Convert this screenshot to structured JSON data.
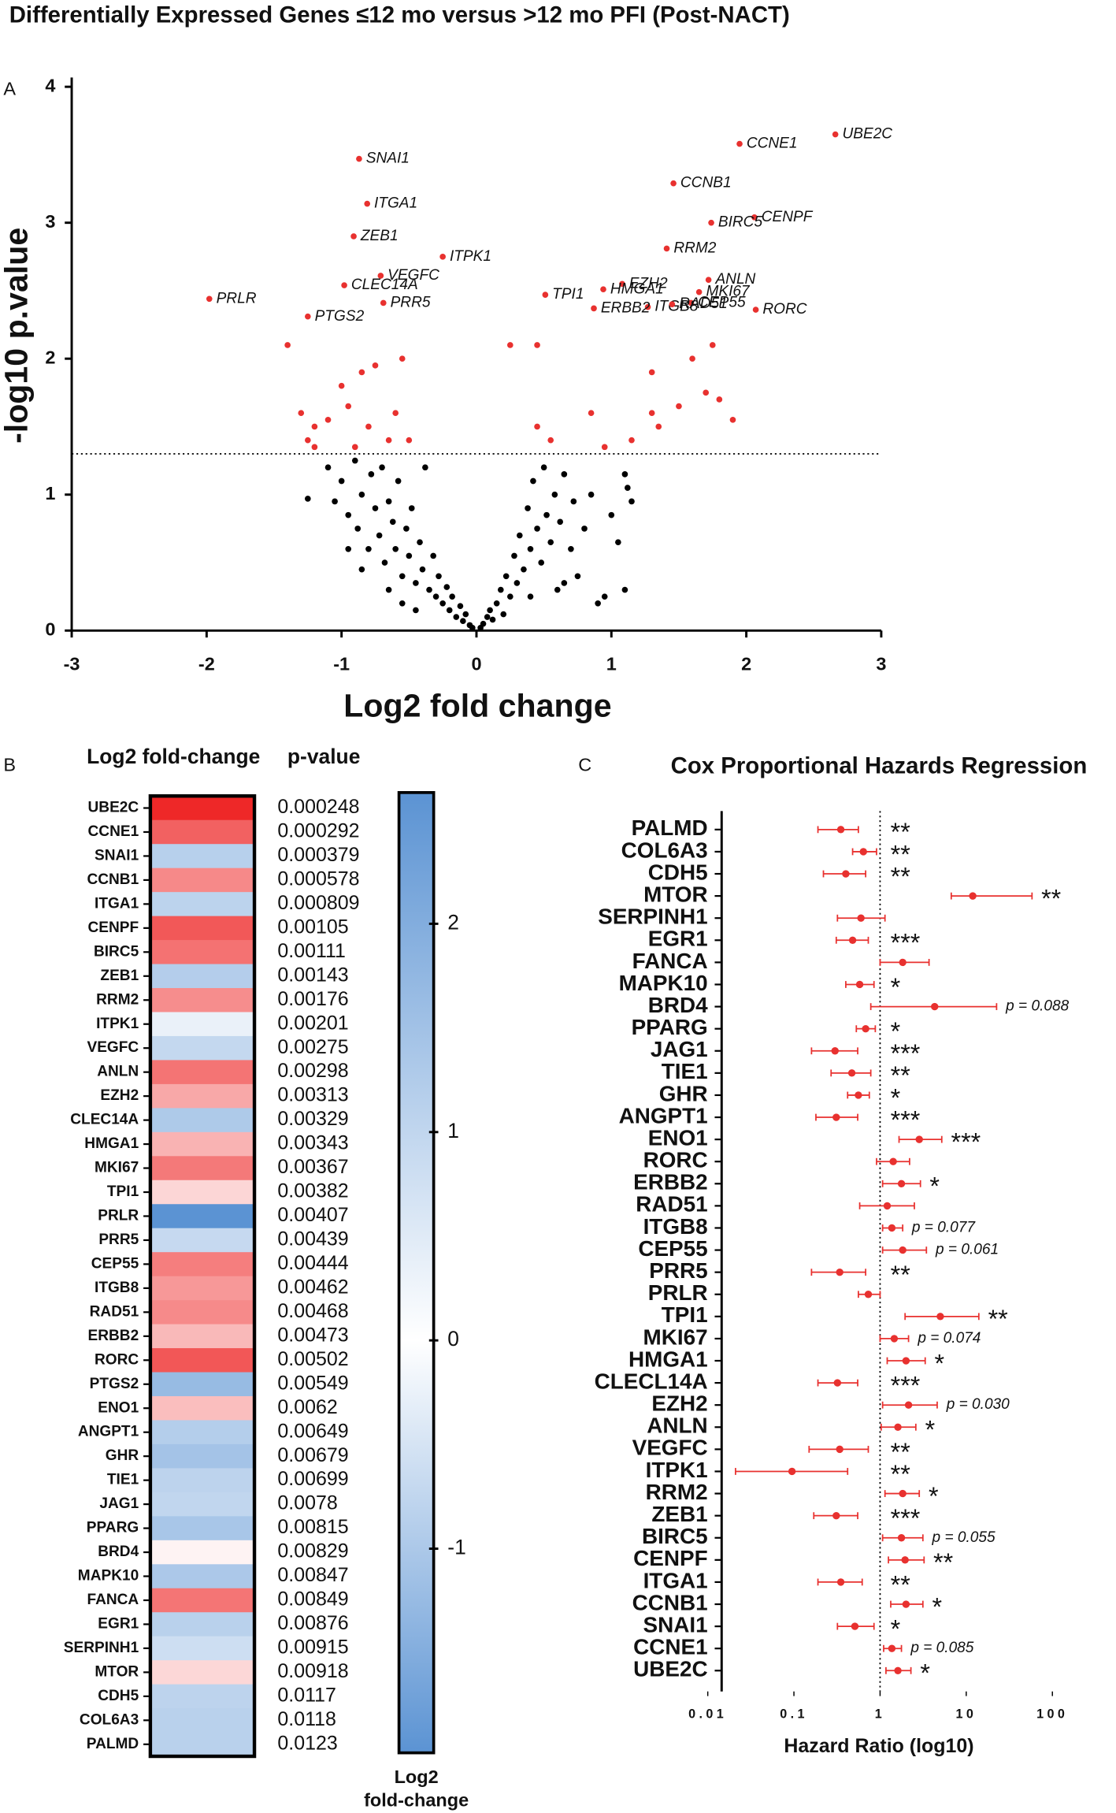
{
  "chart_data": [
    {
      "type": "scatter",
      "panel": "A",
      "title": "Differentially Expressed Genes ≤12 mo versus >12 mo PFI (Post-NACT)",
      "x_label": "Log2 fold change",
      "y_label": "-log10 p.value",
      "xlim": [
        -3,
        3
      ],
      "xticks": [
        -3,
        -2,
        -1,
        0,
        1,
        2,
        3
      ],
      "ylim": [
        0,
        4
      ],
      "yticks": [
        0,
        1,
        2,
        3,
        4
      ],
      "threshold": 1.3,
      "series": [
        {
          "color": "#e8312f",
          "labels": [
            "UBE2C",
            "CCNE1",
            "SNAI1",
            "CCNB1",
            "ITGA1",
            "CENPF",
            "BIRC5",
            "ZEB1",
            "RRM2",
            "ITPK1",
            "VEGFC",
            "ANLN",
            "EZH2",
            "CLEC14A",
            "HMGA1",
            "MKI67",
            "TPI1",
            "PRLR",
            "PRR5",
            "CEP55",
            "ITGB8",
            "RAD51",
            "ERBB2",
            "RORC",
            "PTGS2"
          ],
          "x": [
            2.66,
            1.95,
            -0.87,
            1.46,
            -0.81,
            2.06,
            1.74,
            -0.91,
            1.41,
            -0.25,
            -0.71,
            1.72,
            1.08,
            -0.98,
            0.94,
            1.65,
            0.51,
            -1.98,
            -0.69,
            1.59,
            1.27,
            1.45,
            0.87,
            2.07,
            -1.25
          ],
          "y": [
            3.65,
            3.58,
            3.47,
            3.29,
            3.14,
            3.04,
            3.0,
            2.9,
            2.81,
            2.75,
            2.61,
            2.58,
            2.55,
            2.54,
            2.51,
            2.49,
            2.47,
            2.44,
            2.41,
            2.41,
            2.38,
            2.4,
            2.37,
            2.36,
            2.31
          ]
        },
        {
          "color": "#e8312f",
          "x": [
            -1.4,
            -1.3,
            -1.2,
            -1.25,
            -1.1,
            -0.95,
            -0.85,
            -0.75,
            -0.8,
            -0.6,
            -0.55,
            -0.5,
            -0.65,
            -1.0,
            -0.9,
            -1.2,
            0.25,
            0.45,
            0.45,
            0.55,
            0.85,
            0.95,
            1.15,
            1.3,
            1.3,
            1.35,
            1.6,
            1.7,
            1.8,
            1.9,
            1.5,
            1.75
          ],
          "y": [
            2.1,
            1.6,
            1.5,
            1.4,
            1.55,
            1.65,
            1.9,
            1.95,
            1.5,
            1.6,
            2.0,
            1.4,
            1.4,
            1.8,
            1.35,
            1.35,
            2.1,
            2.1,
            1.5,
            1.4,
            1.6,
            1.35,
            1.4,
            1.6,
            1.9,
            1.5,
            2.0,
            1.75,
            1.7,
            1.55,
            1.65,
            2.1
          ]
        },
        {
          "color": "#000000",
          "x": [
            -1.25,
            -1.1,
            -1.05,
            -1.0,
            -0.95,
            -0.9,
            -0.88,
            -0.85,
            -0.8,
            -0.78,
            -0.75,
            -0.72,
            -0.7,
            -0.68,
            -0.65,
            -0.62,
            -0.6,
            -0.58,
            -0.55,
            -0.52,
            -0.5,
            -0.48,
            -0.45,
            -0.42,
            -0.4,
            -0.38,
            -0.35,
            -0.32,
            -0.3,
            -0.28,
            -0.25,
            -0.22,
            -0.2,
            -0.18,
            -0.15,
            -0.12,
            -0.1,
            -0.08,
            -0.05,
            -0.03,
            -0.95,
            -0.85,
            -0.65,
            -0.55,
            -0.45,
            0.03,
            0.05,
            0.08,
            0.1,
            0.12,
            0.15,
            0.18,
            0.2,
            0.22,
            0.25,
            0.28,
            0.3,
            0.32,
            0.35,
            0.38,
            0.4,
            0.42,
            0.45,
            0.48,
            0.5,
            0.52,
            0.55,
            0.58,
            0.6,
            0.62,
            0.65,
            0.7,
            0.72,
            0.75,
            0.8,
            0.85,
            0.9,
            0.95,
            1.05,
            1.1,
            1.15,
            1.1,
            1.0,
            0.65,
            0.4,
            1.12
          ],
          "y": [
            0.97,
            1.2,
            0.95,
            1.1,
            0.85,
            1.25,
            0.75,
            1.0,
            0.6,
            1.15,
            0.9,
            0.7,
            1.2,
            0.5,
            0.95,
            0.8,
            0.6,
            1.1,
            0.4,
            0.75,
            0.55,
            0.9,
            0.35,
            0.65,
            0.45,
            1.2,
            0.3,
            0.55,
            0.25,
            0.4,
            0.2,
            0.32,
            0.15,
            0.25,
            0.1,
            0.18,
            0.07,
            0.12,
            0.04,
            0.02,
            0.6,
            0.45,
            0.3,
            0.2,
            0.15,
            0.02,
            0.05,
            0.1,
            0.15,
            0.08,
            0.2,
            0.3,
            0.12,
            0.4,
            0.25,
            0.55,
            0.35,
            0.7,
            0.45,
            0.9,
            0.6,
            1.1,
            0.75,
            0.5,
            1.2,
            0.85,
            0.65,
            1.0,
            0.3,
            0.8,
            1.15,
            0.6,
            0.95,
            0.4,
            0.75,
            1.0,
            0.2,
            0.25,
            0.65,
            1.15,
            0.95,
            0.3,
            0.85,
            0.35,
            0.25,
            1.05
          ]
        }
      ]
    },
    {
      "type": "heatmap",
      "panel": "B",
      "headers": [
        "Log2 fold-change",
        "p-value"
      ],
      "categories": [
        "UBE2C",
        "CCNE1",
        "SNAI1",
        "CCNB1",
        "ITGA1",
        "CENPF",
        "BIRC5",
        "ZEB1",
        "RRM2",
        "ITPK1",
        "VEGFC",
        "ANLN",
        "EZH2",
        "CLEC14A",
        "HMGA1",
        "MKI67",
        "TPI1",
        "PRLR",
        "PRR5",
        "CEP55",
        "ITGB8",
        "RAD51",
        "ERBB2",
        "RORC",
        "PTGS2",
        "ENO1",
        "ANGPT1",
        "GHR",
        "TIE1",
        "JAG1",
        "PPARG",
        "BRD4",
        "MAPK10",
        "FANCA",
        "EGR1",
        "SERPINH1",
        "MTOR",
        "CDH5",
        "COL6A3",
        "PALMD"
      ],
      "values": [
        2.66,
        1.95,
        -0.87,
        1.46,
        -0.81,
        2.06,
        1.74,
        -0.91,
        1.41,
        -0.25,
        -0.71,
        1.72,
        1.08,
        -0.98,
        0.94,
        1.65,
        0.51,
        -1.98,
        -0.69,
        1.59,
        1.27,
        1.45,
        0.87,
        2.07,
        -1.25,
        0.8,
        -0.9,
        -1.1,
        -0.8,
        -0.75,
        -1.05,
        0.15,
        -1.0,
        1.7,
        -0.85,
        -0.6,
        0.5,
        -0.8,
        -0.85,
        -0.85
      ],
      "p_values": [
        0.000248,
        0.000292,
        0.000379,
        0.000578,
        0.000809,
        0.00105,
        0.00111,
        0.00143,
        0.00176,
        0.00201,
        0.00275,
        0.00298,
        0.00313,
        0.00329,
        0.00343,
        0.00367,
        0.00382,
        0.00407,
        0.00439,
        0.00444,
        0.00462,
        0.00468,
        0.00473,
        0.00502,
        0.00549,
        0.0062,
        0.00649,
        0.00679,
        0.00699,
        0.0078,
        0.00815,
        0.00829,
        0.00847,
        0.00849,
        0.00876,
        0.00915,
        0.00918,
        0.0117,
        0.0118,
        0.0123
      ],
      "colors": [
        "#5b93d3",
        "#ffffff",
        "#ee2a2a"
      ],
      "ylim": [
        -1.98,
        2.63
      ],
      "yticks": [
        -1,
        0,
        1,
        2
      ],
      "colorbar_label": [
        "Log2",
        "fold-change"
      ]
    },
    {
      "type": "forest",
      "panel": "C",
      "title": "Cox Proportional Hazards Regression",
      "x_label": "Hazard Ratio (log10)",
      "log_x": true,
      "xlim": [
        0.01,
        100
      ],
      "xticks": [
        0.01,
        0.1,
        1,
        10,
        100
      ],
      "refline": 1,
      "color": "#e8312f",
      "categories": [
        "PALMD",
        "COL6A3",
        "CDH5",
        "MTOR",
        "SERPINH1",
        "EGR1",
        "FANCA",
        "MAPK10",
        "BRD4",
        "PPARG",
        "JAG1",
        "TIE1",
        "GHR",
        "ANGPT1",
        "ENO1",
        "RORC",
        "ERBB2",
        "RAD51",
        "ITGB8",
        "CEP55",
        "PRR5",
        "PRLR",
        "TPI1",
        "MKI67",
        "HMGA1",
        "CLECL14A",
        "EZH2",
        "ANLN",
        "VEGFC",
        "ITPK1",
        "RRM2",
        "ZEB1",
        "BIRC5",
        "CENPF",
        "ITGA1",
        "CCNB1",
        "SNAI1",
        "CCNE1",
        "UBE2C"
      ],
      "values": [
        0.35,
        0.64,
        0.4,
        11.9,
        0.6,
        0.48,
        1.83,
        0.58,
        4.3,
        0.68,
        0.3,
        0.47,
        0.56,
        0.31,
        2.85,
        1.42,
        1.77,
        1.21,
        1.37,
        1.83,
        0.34,
        0.73,
        5.0,
        1.46,
        2.0,
        0.32,
        2.14,
        1.61,
        0.34,
        0.095,
        1.83,
        0.31,
        1.77,
        1.95,
        0.35,
        2.0,
        0.51,
        1.37,
        1.61
      ],
      "lower": [
        0.19,
        0.48,
        0.22,
        6.7,
        0.32,
        0.31,
        1.0,
        0.4,
        0.78,
        0.53,
        0.16,
        0.27,
        0.42,
        0.18,
        1.66,
        0.91,
        1.07,
        0.58,
        1.07,
        1.07,
        0.16,
        0.56,
        1.95,
        1.0,
        1.21,
        0.19,
        1.07,
        1.03,
        0.15,
        0.021,
        1.14,
        0.17,
        1.07,
        1.25,
        0.19,
        1.33,
        0.32,
        1.1,
        1.17
      ],
      "upper": [
        0.56,
        0.91,
        0.68,
        58,
        1.14,
        0.73,
        3.7,
        0.85,
        22.5,
        0.88,
        0.55,
        0.78,
        0.75,
        0.55,
        5.2,
        2.2,
        2.94,
        2.5,
        1.83,
        3.45,
        0.68,
        1.0,
        14,
        2.14,
        3.34,
        0.55,
        4.6,
        2.6,
        0.73,
        0.42,
        2.85,
        0.55,
        3.14,
        3.24,
        0.62,
        3.14,
        0.85,
        1.77,
        2.28
      ],
      "annotations": [
        "**",
        "**",
        "**",
        "**",
        null,
        "***",
        null,
        "*",
        "p = 0.088",
        "*",
        "***",
        "**",
        "*",
        "***",
        "***",
        null,
        "*",
        null,
        "p = 0.077",
        "p = 0.061",
        "**",
        null,
        "**",
        "p = 0.074",
        "*",
        "***",
        "p = 0.030",
        "*",
        "**",
        "**",
        "*",
        "***",
        "p = 0.055",
        "**",
        "**",
        "*",
        "*",
        "p = 0.085",
        "*"
      ]
    }
  ]
}
